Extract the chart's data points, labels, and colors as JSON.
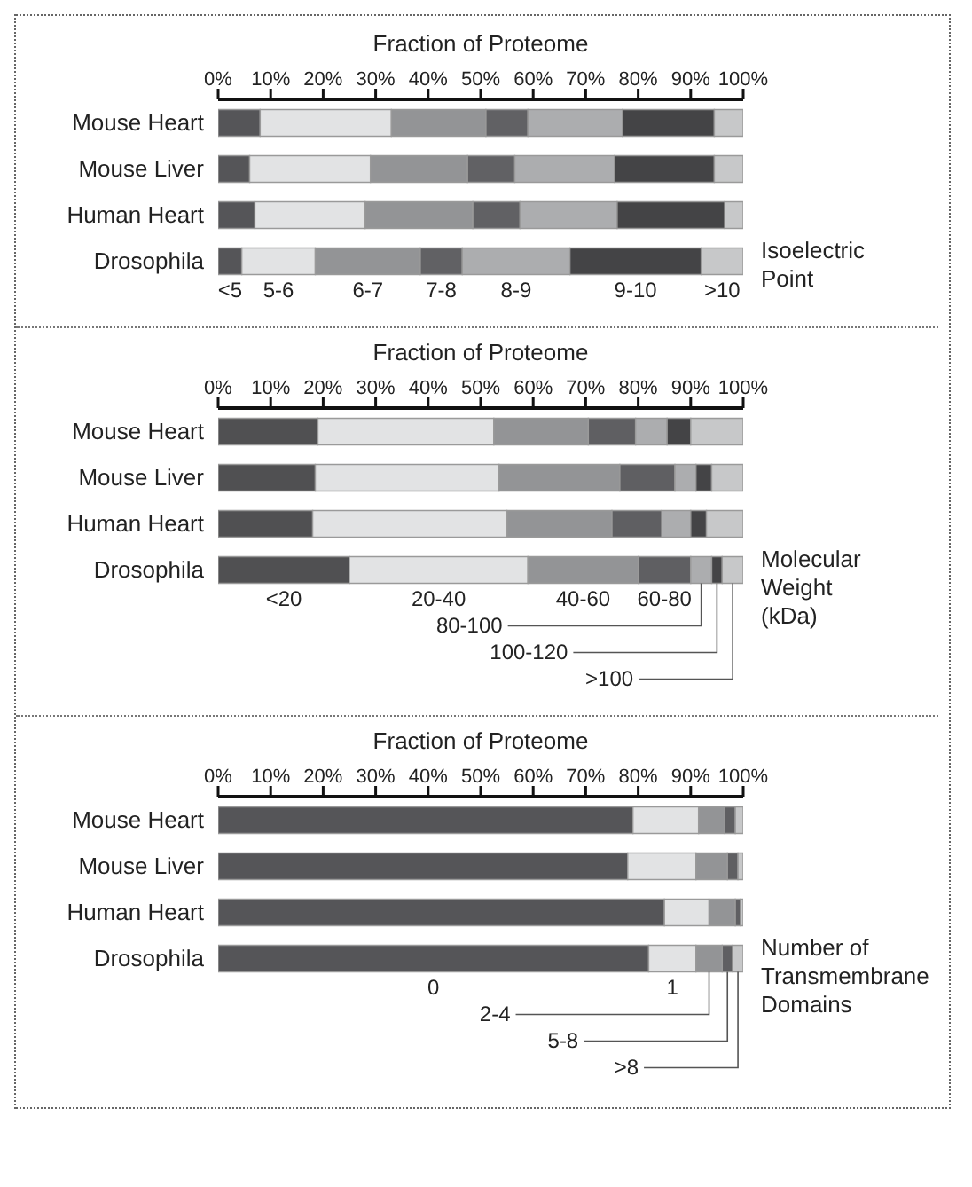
{
  "chart_data": [
    {
      "type": "bar",
      "orientation": "horizontal",
      "stacked": true,
      "xlabel": "Fraction of Proteome",
      "categories": [
        "Mouse Heart",
        "Mouse Liver",
        "Human Heart",
        "Drosophila"
      ],
      "xlim": [
        0,
        100
      ],
      "xticks": [
        {
          "value": 0,
          "label": "0%"
        },
        {
          "value": 10,
          "label": "10%"
        },
        {
          "value": 20,
          "label": "20%"
        },
        {
          "value": 30,
          "label": "30%"
        },
        {
          "value": 40,
          "label": "40%"
        },
        {
          "value": 50,
          "label": "50%"
        },
        {
          "value": 60,
          "label": "60%"
        },
        {
          "value": 70,
          "label": "70%"
        },
        {
          "value": 80,
          "label": "80%"
        },
        {
          "value": 90,
          "label": "90%"
        },
        {
          "value": 100,
          "label": "100%"
        }
      ],
      "annotations": [
        "Isoelectric Point"
      ],
      "series": [
        {
          "name": "<5",
          "color": "#555558",
          "values": [
            8,
            6,
            7,
            4.5
          ]
        },
        {
          "name": "5-6",
          "color": "#e2e3e4",
          "values": [
            25,
            23,
            21,
            14
          ]
        },
        {
          "name": "6-7",
          "color": "#939496",
          "values": [
            18,
            18.5,
            20.5,
            20
          ]
        },
        {
          "name": "7-8",
          "color": "#616164",
          "values": [
            8,
            9,
            9,
            8
          ]
        },
        {
          "name": "8-9",
          "color": "#acadaf",
          "values": [
            18,
            19,
            18.5,
            20.5
          ]
        },
        {
          "name": "9-10",
          "color": "#444446",
          "values": [
            17.5,
            19,
            20.5,
            25
          ]
        },
        {
          "name": ">10",
          "color": "#c7c8c9",
          "values": [
            5.5,
            5.5,
            3.5,
            8
          ]
        }
      ]
    },
    {
      "type": "bar",
      "orientation": "horizontal",
      "stacked": true,
      "xlabel": "Fraction of Proteome",
      "categories": [
        "Mouse Heart",
        "Mouse Liver",
        "Human Heart",
        "Drosophila"
      ],
      "xlim": [
        0,
        100
      ],
      "xticks": [
        {
          "value": 0,
          "label": "0%"
        },
        {
          "value": 10,
          "label": "10%"
        },
        {
          "value": 20,
          "label": "20%"
        },
        {
          "value": 30,
          "label": "30%"
        },
        {
          "value": 40,
          "label": "40%"
        },
        {
          "value": 50,
          "label": "50%"
        },
        {
          "value": 60,
          "label": "60%"
        },
        {
          "value": 70,
          "label": "70%"
        },
        {
          "value": 80,
          "label": "80%"
        },
        {
          "value": 90,
          "label": "90%"
        },
        {
          "value": 100,
          "label": "100%"
        }
      ],
      "annotations": [
        "Molecular Weight (kDa)"
      ],
      "series": [
        {
          "name": "<20",
          "color": "#505052",
          "values": [
            19,
            18.5,
            18,
            25
          ]
        },
        {
          "name": "20-40",
          "color": "#e2e3e4",
          "values": [
            33.5,
            35,
            37,
            34
          ]
        },
        {
          "name": "40-60",
          "color": "#939496",
          "values": [
            18,
            23,
            20,
            21
          ]
        },
        {
          "name": "60-80",
          "color": "#5f5f62",
          "values": [
            9,
            10.5,
            9.5,
            10
          ]
        },
        {
          "name": "80-100",
          "color": "#acadaf",
          "values": [
            6,
            4,
            5.5,
            4
          ]
        },
        {
          "name": "100-120",
          "color": "#444446",
          "values": [
            4.5,
            3,
            3,
            2
          ]
        },
        {
          "name": ">100",
          "color": "#c7c8c9",
          "values": [
            10,
            6,
            7,
            4
          ]
        }
      ]
    },
    {
      "type": "bar",
      "orientation": "horizontal",
      "stacked": true,
      "xlabel": "Fraction of Proteome",
      "categories": [
        "Mouse Heart",
        "Mouse Liver",
        "Human Heart",
        "Drosophila"
      ],
      "xlim": [
        0,
        100
      ],
      "xticks": [
        {
          "value": 0,
          "label": "0%"
        },
        {
          "value": 10,
          "label": "10%"
        },
        {
          "value": 20,
          "label": "20%"
        },
        {
          "value": 30,
          "label": "30%"
        },
        {
          "value": 40,
          "label": "40%"
        },
        {
          "value": 50,
          "label": "50%"
        },
        {
          "value": 60,
          "label": "60%"
        },
        {
          "value": 70,
          "label": "70%"
        },
        {
          "value": 80,
          "label": "80%"
        },
        {
          "value": 90,
          "label": "90%"
        },
        {
          "value": 100,
          "label": "100%"
        }
      ],
      "annotations": [
        "Number of Transmembrane Domains"
      ],
      "series": [
        {
          "name": "0",
          "color": "#555558",
          "values": [
            79,
            78,
            85,
            82
          ]
        },
        {
          "name": "1",
          "color": "#e2e3e4",
          "values": [
            12.5,
            13,
            8.5,
            9
          ]
        },
        {
          "name": "2-4",
          "color": "#939496",
          "values": [
            5,
            6,
            5,
            5
          ]
        },
        {
          "name": "5-8",
          "color": "#5f5f62",
          "values": [
            2,
            2,
            1,
            2
          ]
        },
        {
          "name": ">8",
          "color": "#c7c8c9",
          "values": [
            1.5,
            1,
            0.5,
            2
          ]
        }
      ]
    }
  ]
}
